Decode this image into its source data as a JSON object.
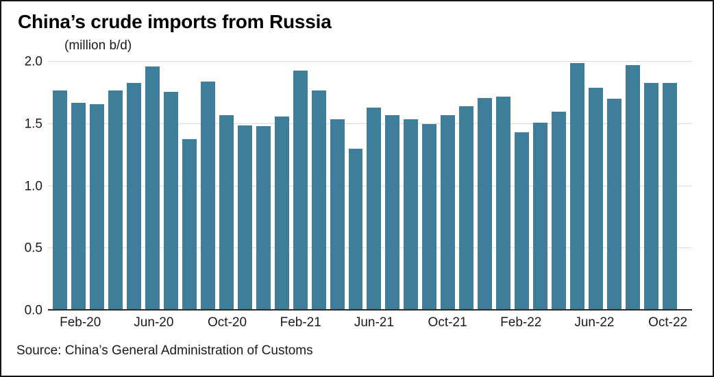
{
  "chart_data": {
    "type": "bar",
    "title": "China’s crude imports from Russia",
    "unit_label": "(million b/d)",
    "categories": [
      "Jan-20",
      "Feb-20",
      "Mar-20",
      "Apr-20",
      "May-20",
      "Jun-20",
      "Jul-20",
      "Aug-20",
      "Sep-20",
      "Oct-20",
      "Nov-20",
      "Dec-20",
      "Jan-21",
      "Feb-21",
      "Mar-21",
      "Apr-21",
      "May-21",
      "Jun-21",
      "Jul-21",
      "Aug-21",
      "Sep-21",
      "Oct-21",
      "Nov-21",
      "Dec-21",
      "Jan-22",
      "Feb-22",
      "Mar-22",
      "Apr-22",
      "May-22",
      "Jun-22",
      "Jul-22",
      "Aug-22",
      "Sep-22",
      "Oct-22"
    ],
    "values": [
      1.77,
      1.67,
      1.66,
      1.77,
      1.83,
      1.96,
      1.76,
      1.38,
      1.84,
      1.57,
      1.49,
      1.48,
      1.56,
      1.93,
      1.77,
      1.54,
      1.3,
      1.63,
      1.57,
      1.54,
      1.5,
      1.57,
      1.64,
      1.71,
      1.72,
      1.43,
      1.51,
      1.6,
      1.99,
      1.79,
      1.7,
      1.97,
      1.83,
      1.83
    ],
    "x_tick_labels": [
      "Feb-20",
      "Jun-20",
      "Oct-20",
      "Feb-21",
      "Jun-21",
      "Oct-21",
      "Feb-22",
      "Jun-22",
      "Oct-22"
    ],
    "y_ticks": [
      0,
      0.5,
      1.0,
      1.5,
      2.0
    ],
    "y_tick_labels": [
      "0.0",
      "0.5",
      "1.0",
      "1.5",
      "2.0"
    ],
    "ylim": [
      0,
      2.0
    ],
    "xlabel": "",
    "ylabel": "(million b/d)",
    "grid": "horizontal",
    "legend": "none",
    "bar_color": "#3e7e9b"
  },
  "source": "Source: China’s General Administration of Customs"
}
